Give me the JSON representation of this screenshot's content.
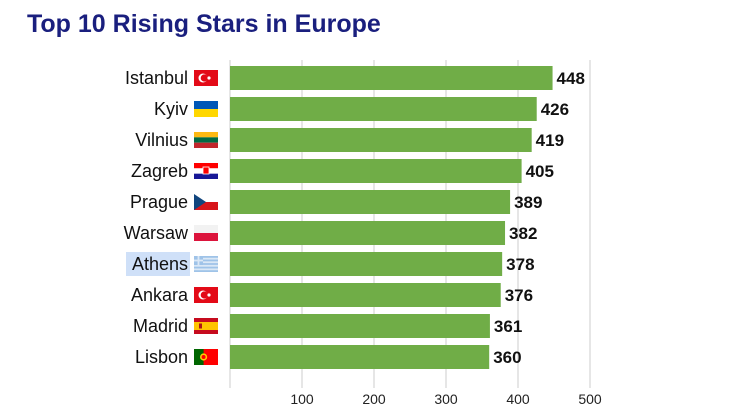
{
  "chart_data": {
    "type": "bar",
    "orientation": "horizontal",
    "title": "Top 10 Rising Stars in Europe",
    "xlabel": "",
    "ylabel": "",
    "categories": [
      "Istanbul",
      "Kyiv",
      "Vilnius",
      "Zagreb",
      "Prague",
      "Warsaw",
      "Athens",
      "Ankara",
      "Madrid",
      "Lisbon"
    ],
    "flags": [
      "turkey-flag-icon",
      "ukraine-flag-icon",
      "lithuania-flag-icon",
      "croatia-flag-icon",
      "czechia-flag-icon",
      "poland-flag-icon",
      "greece-flag-icon",
      "turkey-flag-icon",
      "spain-flag-icon",
      "portugal-flag-icon"
    ],
    "values": [
      448,
      426,
      419,
      405,
      389,
      382,
      378,
      376,
      361,
      360
    ],
    "xlim": [
      0,
      500
    ],
    "xticks": [
      100,
      200,
      300,
      400,
      500
    ],
    "highlighted_category": "Athens",
    "grid": true,
    "colors": {
      "bar": "#70ad47",
      "title": "#1a1f7e",
      "highlight": "#cfe0f8",
      "grid": "#e6e6e6"
    }
  }
}
